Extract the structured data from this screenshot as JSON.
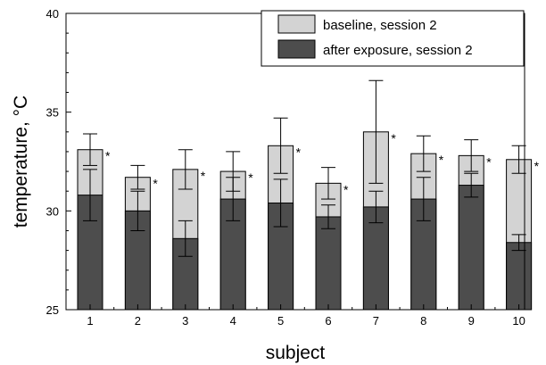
{
  "chart_data": {
    "type": "bar",
    "title": "",
    "xlabel": "subject",
    "ylabel": "temperature, °C",
    "ylim": [
      25,
      40
    ],
    "yticks": [
      25,
      30,
      35,
      40
    ],
    "grid": false,
    "legend_position": "top-right",
    "categories": [
      "1",
      "2",
      "3",
      "4",
      "5",
      "6",
      "7",
      "8",
      "9",
      "10"
    ],
    "series": [
      {
        "name": "baseline, session 2",
        "color": "#d3d3d3",
        "values": [
          33.1,
          31.7,
          32.1,
          32.0,
          33.3,
          31.4,
          34.0,
          32.9,
          32.8,
          32.6
        ],
        "error": [
          0.8,
          0.6,
          1.0,
          1.0,
          1.4,
          0.8,
          2.6,
          0.9,
          0.8,
          0.7
        ]
      },
      {
        "name": "after exposure, session 2",
        "color": "#4d4d4d",
        "values": [
          30.8,
          30.0,
          28.6,
          30.6,
          30.4,
          29.7,
          30.2,
          30.6,
          31.3,
          28.4
        ],
        "error": [
          1.3,
          1.0,
          0.9,
          1.1,
          1.2,
          0.6,
          0.8,
          1.1,
          0.6,
          0.4
        ]
      }
    ],
    "annotations": [
      "*",
      "*",
      "*",
      "*",
      "*",
      "*",
      "*",
      "*",
      "*",
      "*"
    ]
  }
}
